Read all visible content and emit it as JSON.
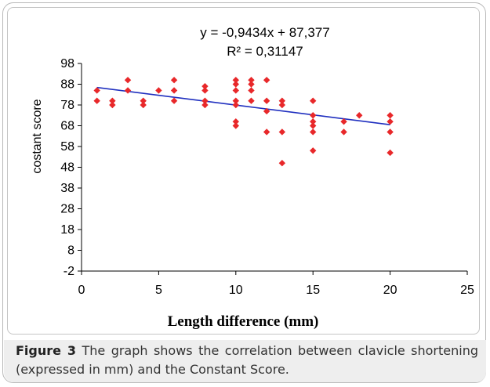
{
  "chart_data": {
    "type": "scatter",
    "equation": "y = -0,9434x + 87,377",
    "r_squared": "R² = 0,31147",
    "xlabel": "Length difference (mm)",
    "ylabel": "costant score",
    "xlim": [
      0,
      25
    ],
    "ylim": [
      -2,
      98
    ],
    "x_ticks": [
      "0",
      "5",
      "10",
      "15",
      "20",
      "25"
    ],
    "y_ticks": [
      "98",
      "88",
      "78",
      "68",
      "58",
      "48",
      "38",
      "28",
      "18",
      "8",
      "-2"
    ],
    "x_tick_values": [
      0,
      5,
      10,
      15,
      20,
      25
    ],
    "y_tick_values": [
      98,
      88,
      78,
      68,
      58,
      48,
      38,
      28,
      18,
      8,
      -2
    ],
    "grid": false,
    "trendline": {
      "slope": -0.9434,
      "intercept": 87.377,
      "x_range": [
        1,
        20
      ],
      "color": "#1f2fbf"
    },
    "marker_color": "#e8282a",
    "points": [
      {
        "x": 1,
        "y": 85
      },
      {
        "x": 1,
        "y": 80
      },
      {
        "x": 2,
        "y": 80
      },
      {
        "x": 2,
        "y": 78
      },
      {
        "x": 3,
        "y": 90
      },
      {
        "x": 3,
        "y": 85
      },
      {
        "x": 4,
        "y": 80
      },
      {
        "x": 4,
        "y": 78
      },
      {
        "x": 5,
        "y": 85
      },
      {
        "x": 6,
        "y": 90
      },
      {
        "x": 6,
        "y": 85
      },
      {
        "x": 6,
        "y": 80
      },
      {
        "x": 8,
        "y": 87
      },
      {
        "x": 8,
        "y": 85
      },
      {
        "x": 8,
        "y": 80
      },
      {
        "x": 8,
        "y": 78
      },
      {
        "x": 10,
        "y": 90
      },
      {
        "x": 10,
        "y": 88
      },
      {
        "x": 10,
        "y": 85
      },
      {
        "x": 10,
        "y": 80
      },
      {
        "x": 10,
        "y": 78
      },
      {
        "x": 10,
        "y": 70
      },
      {
        "x": 10,
        "y": 68
      },
      {
        "x": 11,
        "y": 90
      },
      {
        "x": 11,
        "y": 88
      },
      {
        "x": 11,
        "y": 85
      },
      {
        "x": 11,
        "y": 80
      },
      {
        "x": 12,
        "y": 90
      },
      {
        "x": 12,
        "y": 80
      },
      {
        "x": 12,
        "y": 75
      },
      {
        "x": 12,
        "y": 65
      },
      {
        "x": 13,
        "y": 80
      },
      {
        "x": 13,
        "y": 78
      },
      {
        "x": 13,
        "y": 65
      },
      {
        "x": 13,
        "y": 50
      },
      {
        "x": 15,
        "y": 80
      },
      {
        "x": 15,
        "y": 73
      },
      {
        "x": 15,
        "y": 70
      },
      {
        "x": 15,
        "y": 68
      },
      {
        "x": 15,
        "y": 65
      },
      {
        "x": 15,
        "y": 56
      },
      {
        "x": 17,
        "y": 70
      },
      {
        "x": 17,
        "y": 65
      },
      {
        "x": 18,
        "y": 73
      },
      {
        "x": 20,
        "y": 73
      },
      {
        "x": 20,
        "y": 70
      },
      {
        "x": 20,
        "y": 65
      },
      {
        "x": 20,
        "y": 55
      }
    ]
  },
  "caption": {
    "label": "Figure 3",
    "text": " The graph shows the correlation between clavicle shortening (expressed in mm) and the Constant Score."
  }
}
